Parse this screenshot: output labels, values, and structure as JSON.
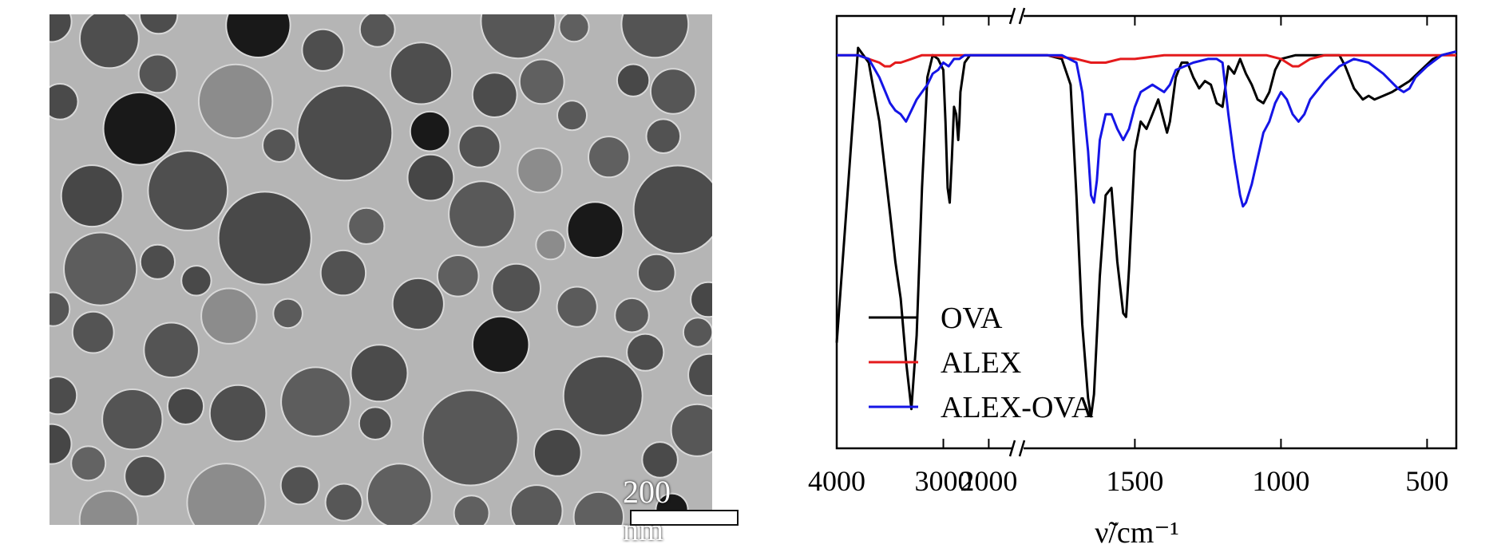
{
  "tem": {
    "scalebar_label": "200 nm"
  },
  "chart_data": {
    "type": "line",
    "title": "",
    "xlabel": "ν̃/cm⁻¹",
    "ylabel": "",
    "x_axis_break": [
      2300,
      1900
    ],
    "x_ticks": [
      4000,
      3000,
      2000,
      1500,
      1000,
      500
    ],
    "xlim": [
      4000,
      400
    ],
    "grid": false,
    "legend_position": "lower-left",
    "series": [
      {
        "name": "OVA",
        "color": "#000000",
        "points": [
          [
            4000,
            20
          ],
          [
            3900,
            60
          ],
          [
            3800,
            100
          ],
          [
            3700,
            96
          ],
          [
            3600,
            80
          ],
          [
            3500,
            55
          ],
          [
            3450,
            42
          ],
          [
            3400,
            32
          ],
          [
            3350,
            15
          ],
          [
            3300,
            2
          ],
          [
            3250,
            22
          ],
          [
            3200,
            62
          ],
          [
            3150,
            92
          ],
          [
            3100,
            98
          ],
          [
            3050,
            97
          ],
          [
            3000,
            94
          ],
          [
            2980,
            80
          ],
          [
            2960,
            62
          ],
          [
            2940,
            58
          ],
          [
            2920,
            70
          ],
          [
            2900,
            84
          ],
          [
            2880,
            82
          ],
          [
            2860,
            75
          ],
          [
            2850,
            80
          ],
          [
            2840,
            88
          ],
          [
            2800,
            96
          ],
          [
            2750,
            98
          ],
          [
            2700,
            98
          ],
          [
            2600,
            98
          ],
          [
            2500,
            98
          ],
          [
            2300,
            98
          ],
          [
            1900,
            98
          ],
          [
            1800,
            98
          ],
          [
            1750,
            97
          ],
          [
            1720,
            90
          ],
          [
            1700,
            60
          ],
          [
            1680,
            25
          ],
          [
            1660,
            5
          ],
          [
            1650,
            0
          ],
          [
            1640,
            6
          ],
          [
            1620,
            38
          ],
          [
            1600,
            60
          ],
          [
            1580,
            62
          ],
          [
            1560,
            42
          ],
          [
            1540,
            28
          ],
          [
            1530,
            27
          ],
          [
            1520,
            40
          ],
          [
            1500,
            72
          ],
          [
            1480,
            80
          ],
          [
            1460,
            78
          ],
          [
            1440,
            82
          ],
          [
            1420,
            86
          ],
          [
            1400,
            80
          ],
          [
            1390,
            77
          ],
          [
            1380,
            80
          ],
          [
            1360,
            92
          ],
          [
            1340,
            96
          ],
          [
            1320,
            96
          ],
          [
            1300,
            92
          ],
          [
            1280,
            89
          ],
          [
            1260,
            91
          ],
          [
            1240,
            90
          ],
          [
            1220,
            85
          ],
          [
            1200,
            84
          ],
          [
            1180,
            95
          ],
          [
            1160,
            93
          ],
          [
            1140,
            97
          ],
          [
            1120,
            93
          ],
          [
            1100,
            90
          ],
          [
            1080,
            86
          ],
          [
            1060,
            85
          ],
          [
            1040,
            88
          ],
          [
            1020,
            94
          ],
          [
            1000,
            97
          ],
          [
            950,
            98
          ],
          [
            900,
            98
          ],
          [
            850,
            98
          ],
          [
            800,
            98
          ],
          [
            780,
            95
          ],
          [
            750,
            89
          ],
          [
            720,
            86
          ],
          [
            700,
            87
          ],
          [
            680,
            86
          ],
          [
            650,
            87
          ],
          [
            620,
            88
          ],
          [
            600,
            89
          ],
          [
            560,
            91
          ],
          [
            520,
            94
          ],
          [
            480,
            97
          ],
          [
            450,
            98
          ],
          [
            400,
            99
          ]
        ]
      },
      {
        "name": "ALEX",
        "color": "#e41a1c",
        "points": [
          [
            4000,
            98
          ],
          [
            3800,
            98
          ],
          [
            3700,
            97
          ],
          [
            3600,
            96
          ],
          [
            3550,
            95
          ],
          [
            3500,
            95
          ],
          [
            3450,
            96
          ],
          [
            3400,
            96
          ],
          [
            3300,
            97
          ],
          [
            3200,
            98
          ],
          [
            3000,
            98
          ],
          [
            2800,
            98
          ],
          [
            2600,
            98
          ],
          [
            2300,
            98
          ],
          [
            1900,
            98
          ],
          [
            1800,
            98
          ],
          [
            1700,
            97
          ],
          [
            1650,
            96
          ],
          [
            1600,
            96
          ],
          [
            1550,
            97
          ],
          [
            1500,
            97
          ],
          [
            1400,
            98
          ],
          [
            1300,
            98
          ],
          [
            1200,
            98
          ],
          [
            1100,
            98
          ],
          [
            1050,
            98
          ],
          [
            1000,
            97
          ],
          [
            960,
            95
          ],
          [
            940,
            95
          ],
          [
            920,
            96
          ],
          [
            900,
            97
          ],
          [
            850,
            98
          ],
          [
            800,
            98
          ],
          [
            700,
            98
          ],
          [
            600,
            98
          ],
          [
            500,
            98
          ],
          [
            400,
            98
          ]
        ]
      },
      {
        "name": "ALEX-OVA",
        "color": "#1515e6",
        "points": [
          [
            4000,
            98
          ],
          [
            3800,
            98
          ],
          [
            3700,
            97
          ],
          [
            3600,
            92
          ],
          [
            3500,
            85
          ],
          [
            3450,
            83
          ],
          [
            3400,
            82
          ],
          [
            3350,
            80
          ],
          [
            3300,
            83
          ],
          [
            3250,
            86
          ],
          [
            3200,
            88
          ],
          [
            3150,
            90
          ],
          [
            3100,
            93
          ],
          [
            3050,
            94
          ],
          [
            3000,
            96
          ],
          [
            2950,
            95
          ],
          [
            2900,
            97
          ],
          [
            2850,
            97
          ],
          [
            2800,
            98
          ],
          [
            2600,
            98
          ],
          [
            2300,
            98
          ],
          [
            1900,
            98
          ],
          [
            1800,
            98
          ],
          [
            1750,
            98
          ],
          [
            1700,
            96
          ],
          [
            1680,
            88
          ],
          [
            1660,
            72
          ],
          [
            1650,
            60
          ],
          [
            1640,
            58
          ],
          [
            1630,
            64
          ],
          [
            1620,
            75
          ],
          [
            1600,
            82
          ],
          [
            1580,
            82
          ],
          [
            1560,
            78
          ],
          [
            1540,
            75
          ],
          [
            1520,
            78
          ],
          [
            1500,
            84
          ],
          [
            1480,
            88
          ],
          [
            1460,
            89
          ],
          [
            1440,
            90
          ],
          [
            1420,
            89
          ],
          [
            1400,
            88
          ],
          [
            1380,
            90
          ],
          [
            1360,
            94
          ],
          [
            1300,
            96
          ],
          [
            1250,
            97
          ],
          [
            1220,
            97
          ],
          [
            1200,
            96
          ],
          [
            1180,
            82
          ],
          [
            1160,
            70
          ],
          [
            1140,
            60
          ],
          [
            1130,
            57
          ],
          [
            1120,
            58
          ],
          [
            1100,
            63
          ],
          [
            1080,
            70
          ],
          [
            1060,
            77
          ],
          [
            1040,
            80
          ],
          [
            1020,
            85
          ],
          [
            1000,
            88
          ],
          [
            980,
            86
          ],
          [
            960,
            82
          ],
          [
            940,
            80
          ],
          [
            920,
            82
          ],
          [
            900,
            86
          ],
          [
            850,
            91
          ],
          [
            800,
            95
          ],
          [
            750,
            97
          ],
          [
            700,
            96
          ],
          [
            650,
            93
          ],
          [
            600,
            89
          ],
          [
            580,
            88
          ],
          [
            560,
            89
          ],
          [
            540,
            92
          ],
          [
            500,
            95
          ],
          [
            450,
            98
          ],
          [
            400,
            99
          ]
        ]
      }
    ]
  }
}
